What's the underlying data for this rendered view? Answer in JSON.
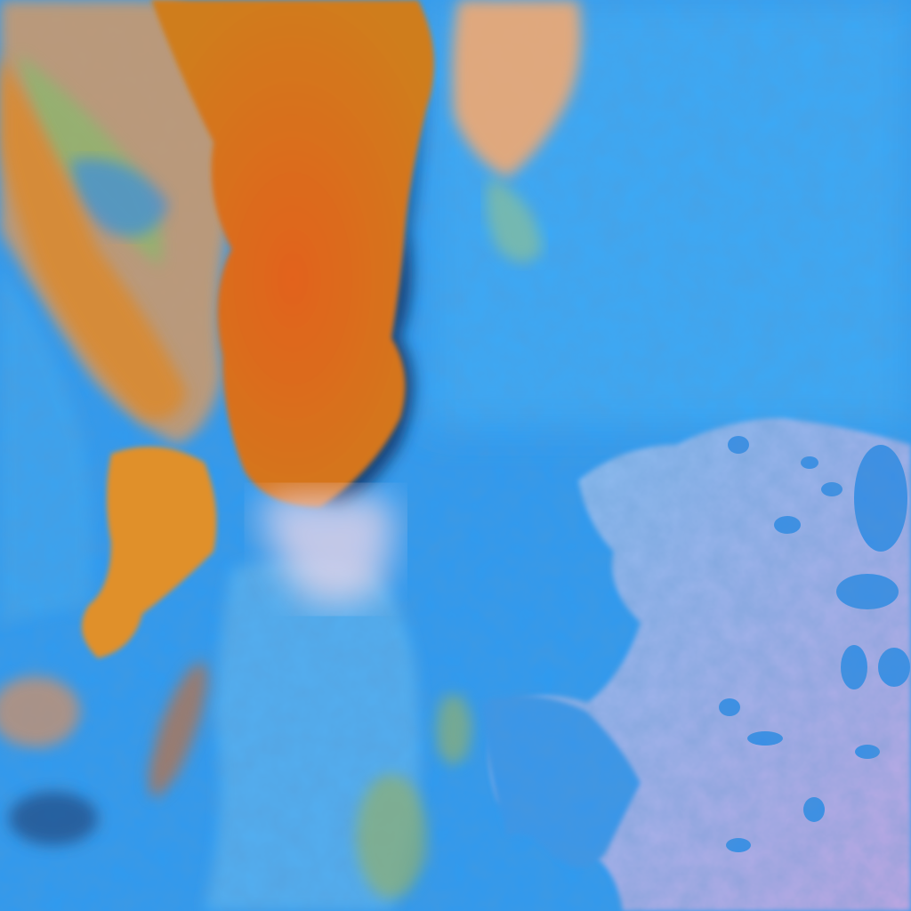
{
  "image": {
    "kind": "false-color satellite imagery",
    "colors": {
      "land": "#2f95ec",
      "land_light": "#4fb4f6",
      "sea": "#8fb8ec",
      "sea_pink": "#b8a8e0",
      "cloud_high": "#d9781c",
      "cloud_core": "#e0651a",
      "cloud_low": "#e9a070",
      "cloud_green": "#8fc06a",
      "shadow": "#0a2a5a"
    }
  }
}
